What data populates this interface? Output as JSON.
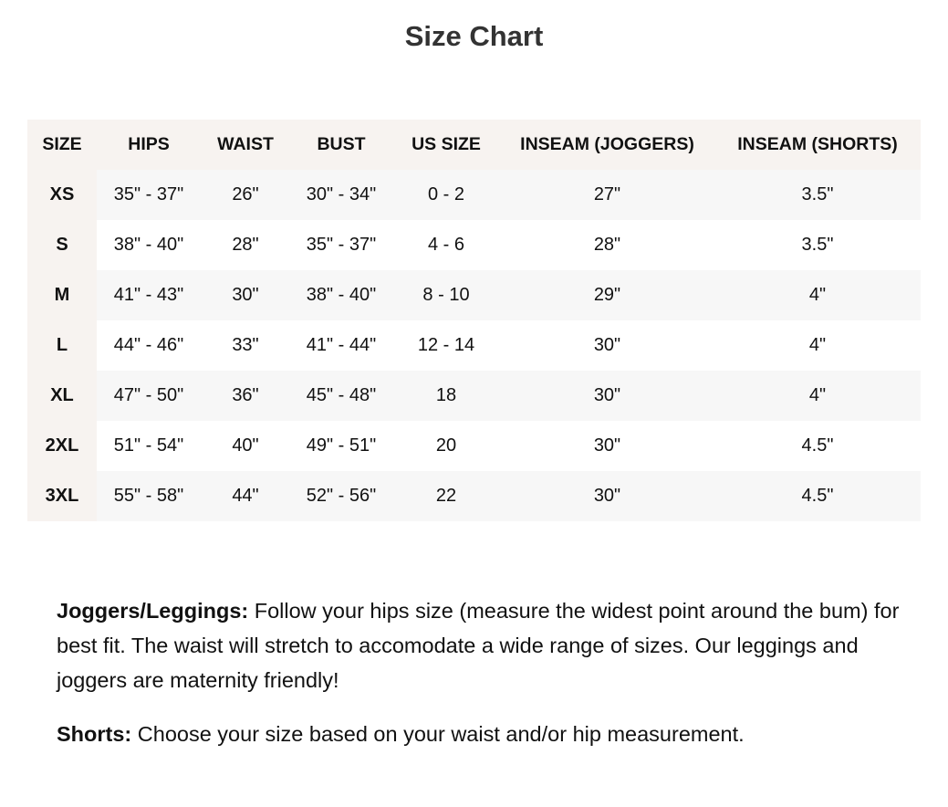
{
  "title": "Size Chart",
  "table": {
    "headers": [
      "SIZE",
      "HIPS",
      "WAIST",
      "BUST",
      "US SIZE",
      "INSEAM (JOGGERS)",
      "INSEAM (SHORTS)"
    ],
    "rows": [
      [
        "XS",
        "35\" - 37\"",
        "26\"",
        "30\" - 34\"",
        "0 - 2",
        "27\"",
        "3.5\""
      ],
      [
        "S",
        "38\" - 40\"",
        "28\"",
        "35\" - 37\"",
        "4 - 6",
        "28\"",
        "3.5\""
      ],
      [
        "M",
        "41\" - 43\"",
        "30\"",
        "38\" - 40\"",
        "8 - 10",
        "29\"",
        "4\""
      ],
      [
        "L",
        "44\" - 46\"",
        "33\"",
        "41\" - 44\"",
        "12 - 14",
        "30\"",
        "4\""
      ],
      [
        "XL",
        "47\" - 50\"",
        "36\"",
        "45\" - 48\"",
        "18",
        "30\"",
        "4\""
      ],
      [
        "2XL",
        "51\" - 54\"",
        "40\"",
        "49\" - 51\"",
        "20",
        "30\"",
        "4.5\""
      ],
      [
        "3XL",
        "55\" - 58\"",
        "44\"",
        "52\" - 56\"",
        "22",
        "30\"",
        "4.5\""
      ]
    ]
  },
  "notes": {
    "joggers_label": "Joggers/Leggings:",
    "joggers_text": " Follow your hips size (measure the widest point around the bum) for best fit. The waist will stretch to accomodate a wide range of sizes. Our leggings and joggers are maternity friendly!",
    "shorts_label": "Shorts:",
    "shorts_text": " Choose your size based on your waist and/or hip measurement."
  }
}
